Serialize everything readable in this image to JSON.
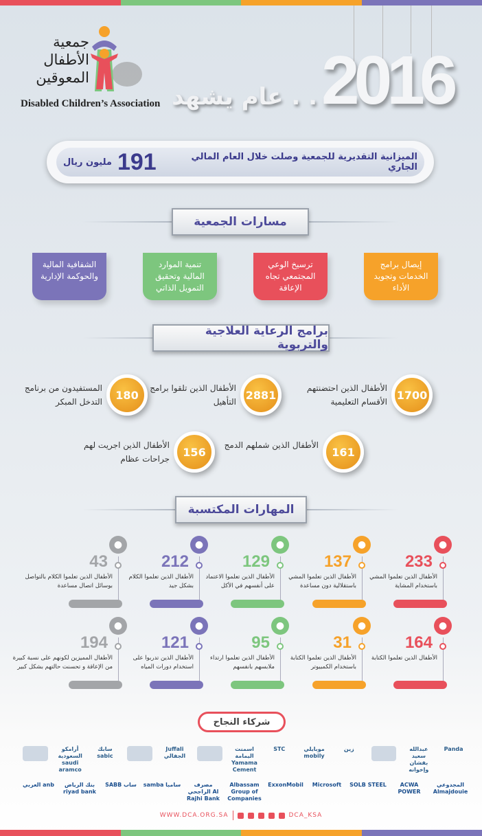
{
  "colors": {
    "red": "#e8505b",
    "green": "#7dc67e",
    "orange": "#f6a22a",
    "purple": "#7b74b9",
    "grey": "#a3a5a8",
    "navy": "#3b3a8c"
  },
  "logo": {
    "arabic_lines": [
      "جمعية",
      "الأطفال",
      "المعوقين"
    ],
    "english": "Disabled Children’s Association"
  },
  "header": {
    "year": "2016",
    "tagline": ". . عام يشهد"
  },
  "budget": {
    "text": "الميزانية التقديرية للجمعية وصلت خلال العام المالي الجاري",
    "value": "191",
    "unit": "مليون ريال"
  },
  "paths": {
    "title": "مسارات الجمعية",
    "items": [
      {
        "label": "إيصال برامج الخدمات وتجويد الأداء",
        "color": "orange"
      },
      {
        "label": "ترسيخ الوعي المجتمعي تجاه الإعاقة",
        "color": "red"
      },
      {
        "label": "تنمية الموارد المالية وتحقيق التمويل الذاتي",
        "color": "green"
      },
      {
        "label": "الشفافية المالية والحوكمة الإدارية",
        "color": "purple"
      }
    ]
  },
  "programs": {
    "title": "برامج الرعاية العلاجية والتربوية",
    "items": [
      {
        "value": "1700",
        "label": "الأطفال الذين احتضنتهم الأقسام التعليمية"
      },
      {
        "value": "2881",
        "label": "الأطفال الذين تلقوا برامج التأهيل"
      },
      {
        "value": "180",
        "label": "المستفيدون من برنامج التدخل المبكر"
      },
      {
        "value": "161",
        "label": "الأطفال الذين شملهم الدمج"
      },
      {
        "value": "156",
        "label": "الأطفال الذين اجريت لهم جراحات عظام"
      }
    ]
  },
  "skills": {
    "title": "المهارات المكتسبة",
    "rows": [
      [
        {
          "value": "233",
          "label": "الأطفال الذين تعلموا المشي باستخدام المشاية",
          "color": "red",
          "icon": "walker-icon"
        },
        {
          "value": "137",
          "label": "الأطفال الذين تعلموا المشي باستقلالية دون مساعدة",
          "color": "orange",
          "icon": "person-icon"
        },
        {
          "value": "129",
          "label": "الأطفال الذين تعلموا الاعتماد على أنفسهم في الأكل",
          "color": "green",
          "icon": "eating-icon"
        },
        {
          "value": "212",
          "label": "الأطفال الذين تعلموا الكلام بشكل جيد",
          "color": "purple",
          "icon": "speaking-icon"
        },
        {
          "value": "43",
          "label": "الأطفال الذين تعلموا الكلام بالتواصل بوسائل اتصال مساعدة",
          "color": "grey",
          "icon": "speech-bubble-icon"
        }
      ],
      [
        {
          "value": "164",
          "label": "الأطفال الذين تعلموا الكتابة",
          "color": "red",
          "icon": "writing-icon"
        },
        {
          "value": "31",
          "label": "الأطفال الذين تعلموا الكتابة باستخدام الكمبيوتر",
          "color": "orange",
          "icon": "wheelchair-computer-icon"
        },
        {
          "value": "95",
          "label": "الأطفال الذين تعلموا ارتداء ملابسهم بانفسهم",
          "color": "green",
          "icon": "dressing-icon"
        },
        {
          "value": "121",
          "label": "الأطفال الذين تدربوا على استخدام دورات المياه",
          "color": "purple",
          "icon": "wheelchair-icon"
        },
        {
          "value": "194",
          "label": "الأطفال المميزين لكونهم على نسبة كبيرة من الإعاقة و تحسنت حالتهم بشكل كبير",
          "color": "grey",
          "icon": "children-icon"
        }
      ]
    ]
  },
  "partners": {
    "title": "شركاء النجاح",
    "row1": [
      "Panda",
      "عبدالله سعيد بقشان وإخوانه",
      "",
      "زين",
      "موبايلي mobily",
      "STC",
      "اسمنت اليمامة Yamama Cement",
      "",
      "Juffali الجفالي",
      "",
      "سابك sabic",
      "أرامكو السعودية saudi aramco",
      ""
    ],
    "row2": [
      "المجدوعي Almajdouie",
      "ACWA POWER",
      "SOLB STEEL",
      "Microsoft",
      "ExxonMobil",
      "Albassam Group of Companies",
      "مصرف الراجحي Al Rajhi Bank",
      "samba سامبا",
      "SABB ساب",
      "بنك الرياض riyad bank",
      "العربي anb"
    ]
  },
  "footer": {
    "website": "WWW.DCA.ORG.SA",
    "handle": "DCA_KSA"
  }
}
